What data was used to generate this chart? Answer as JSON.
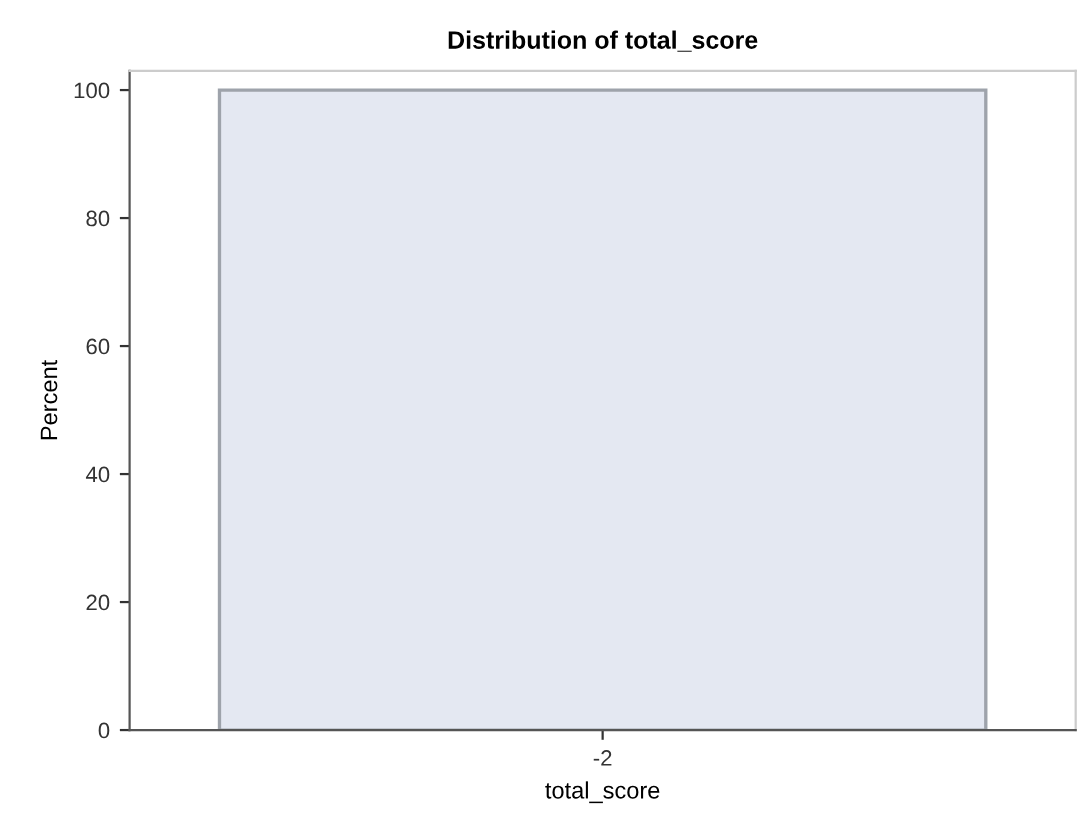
{
  "chart_data": {
    "type": "bar",
    "title": "Distribution of total_score",
    "xlabel": "total_score",
    "ylabel": "Percent",
    "categories": [
      "-2"
    ],
    "values": [
      100
    ],
    "color": "#e4e8f2",
    "ylim": [
      0,
      103
    ],
    "yticks": [
      0,
      20,
      40,
      60,
      80,
      100
    ],
    "grid": false
  }
}
